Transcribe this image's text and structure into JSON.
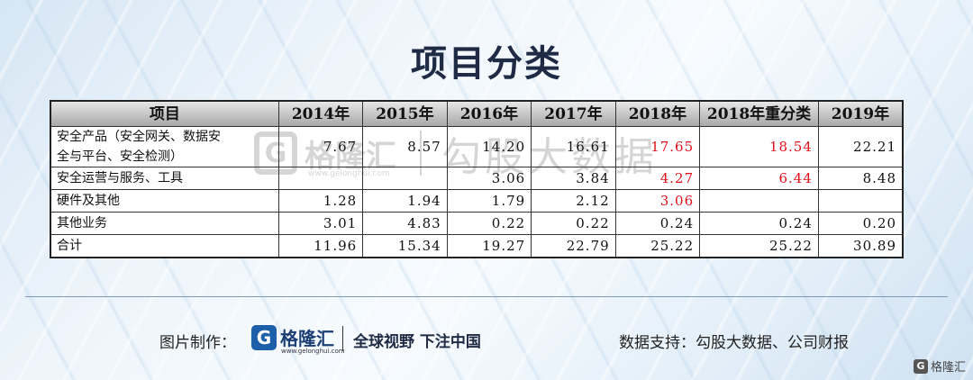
{
  "title": "项目分类",
  "table": {
    "headers": [
      "项目",
      "2014年",
      "2015年",
      "2016年",
      "2017年",
      "2018年",
      "2018年重分类",
      "2019年"
    ],
    "rows": [
      {
        "item_line1": "安全产品（安全网关、数据安",
        "item_line2": "全与平台、安全检测）",
        "values": [
          "7.67",
          "8.57",
          "14.20",
          "16.61",
          "17.65",
          "18.54",
          "22.21"
        ],
        "red_columns": [
          4,
          5
        ]
      },
      {
        "item_line1": "安全运营与服务、工具",
        "item_line2": "",
        "values": [
          "",
          "",
          "3.06",
          "3.84",
          "4.27",
          "6.44",
          "8.48"
        ],
        "red_columns": [
          4,
          5
        ]
      },
      {
        "item_line1": "硬件及其他",
        "item_line2": "",
        "values": [
          "1.28",
          "1.94",
          "1.79",
          "2.12",
          "3.06",
          "",
          ""
        ],
        "red_columns": [
          4
        ]
      },
      {
        "item_line1": "其他业务",
        "item_line2": "",
        "values": [
          "3.01",
          "4.83",
          "0.22",
          "0.22",
          "0.24",
          "0.24",
          "0.20"
        ],
        "red_columns": []
      },
      {
        "item_line1": "合计",
        "item_line2": "",
        "values": [
          "11.96",
          "15.34",
          "19.27",
          "22.79",
          "25.22",
          "25.22",
          "30.89"
        ],
        "red_columns": []
      }
    ],
    "highlight_color": "#e0101a"
  },
  "watermark": {
    "brand": "格隆汇",
    "url": "www.gelonghui.com",
    "text": "勾股大数据"
  },
  "footer": {
    "credit_label": "图片制作：",
    "logo_text": "格隆汇",
    "logo_url": "www.gelonghui.com",
    "slogan": "全球视野 下注中国",
    "source": "数据支持：勾股大数据、公司财报"
  },
  "corner_logo": {
    "text": "格隆汇"
  },
  "icons": {
    "brand_logo": "g-logo-icon"
  },
  "colors": {
    "title": "#1f2a44",
    "brand_blue": "#1d5fa8"
  }
}
